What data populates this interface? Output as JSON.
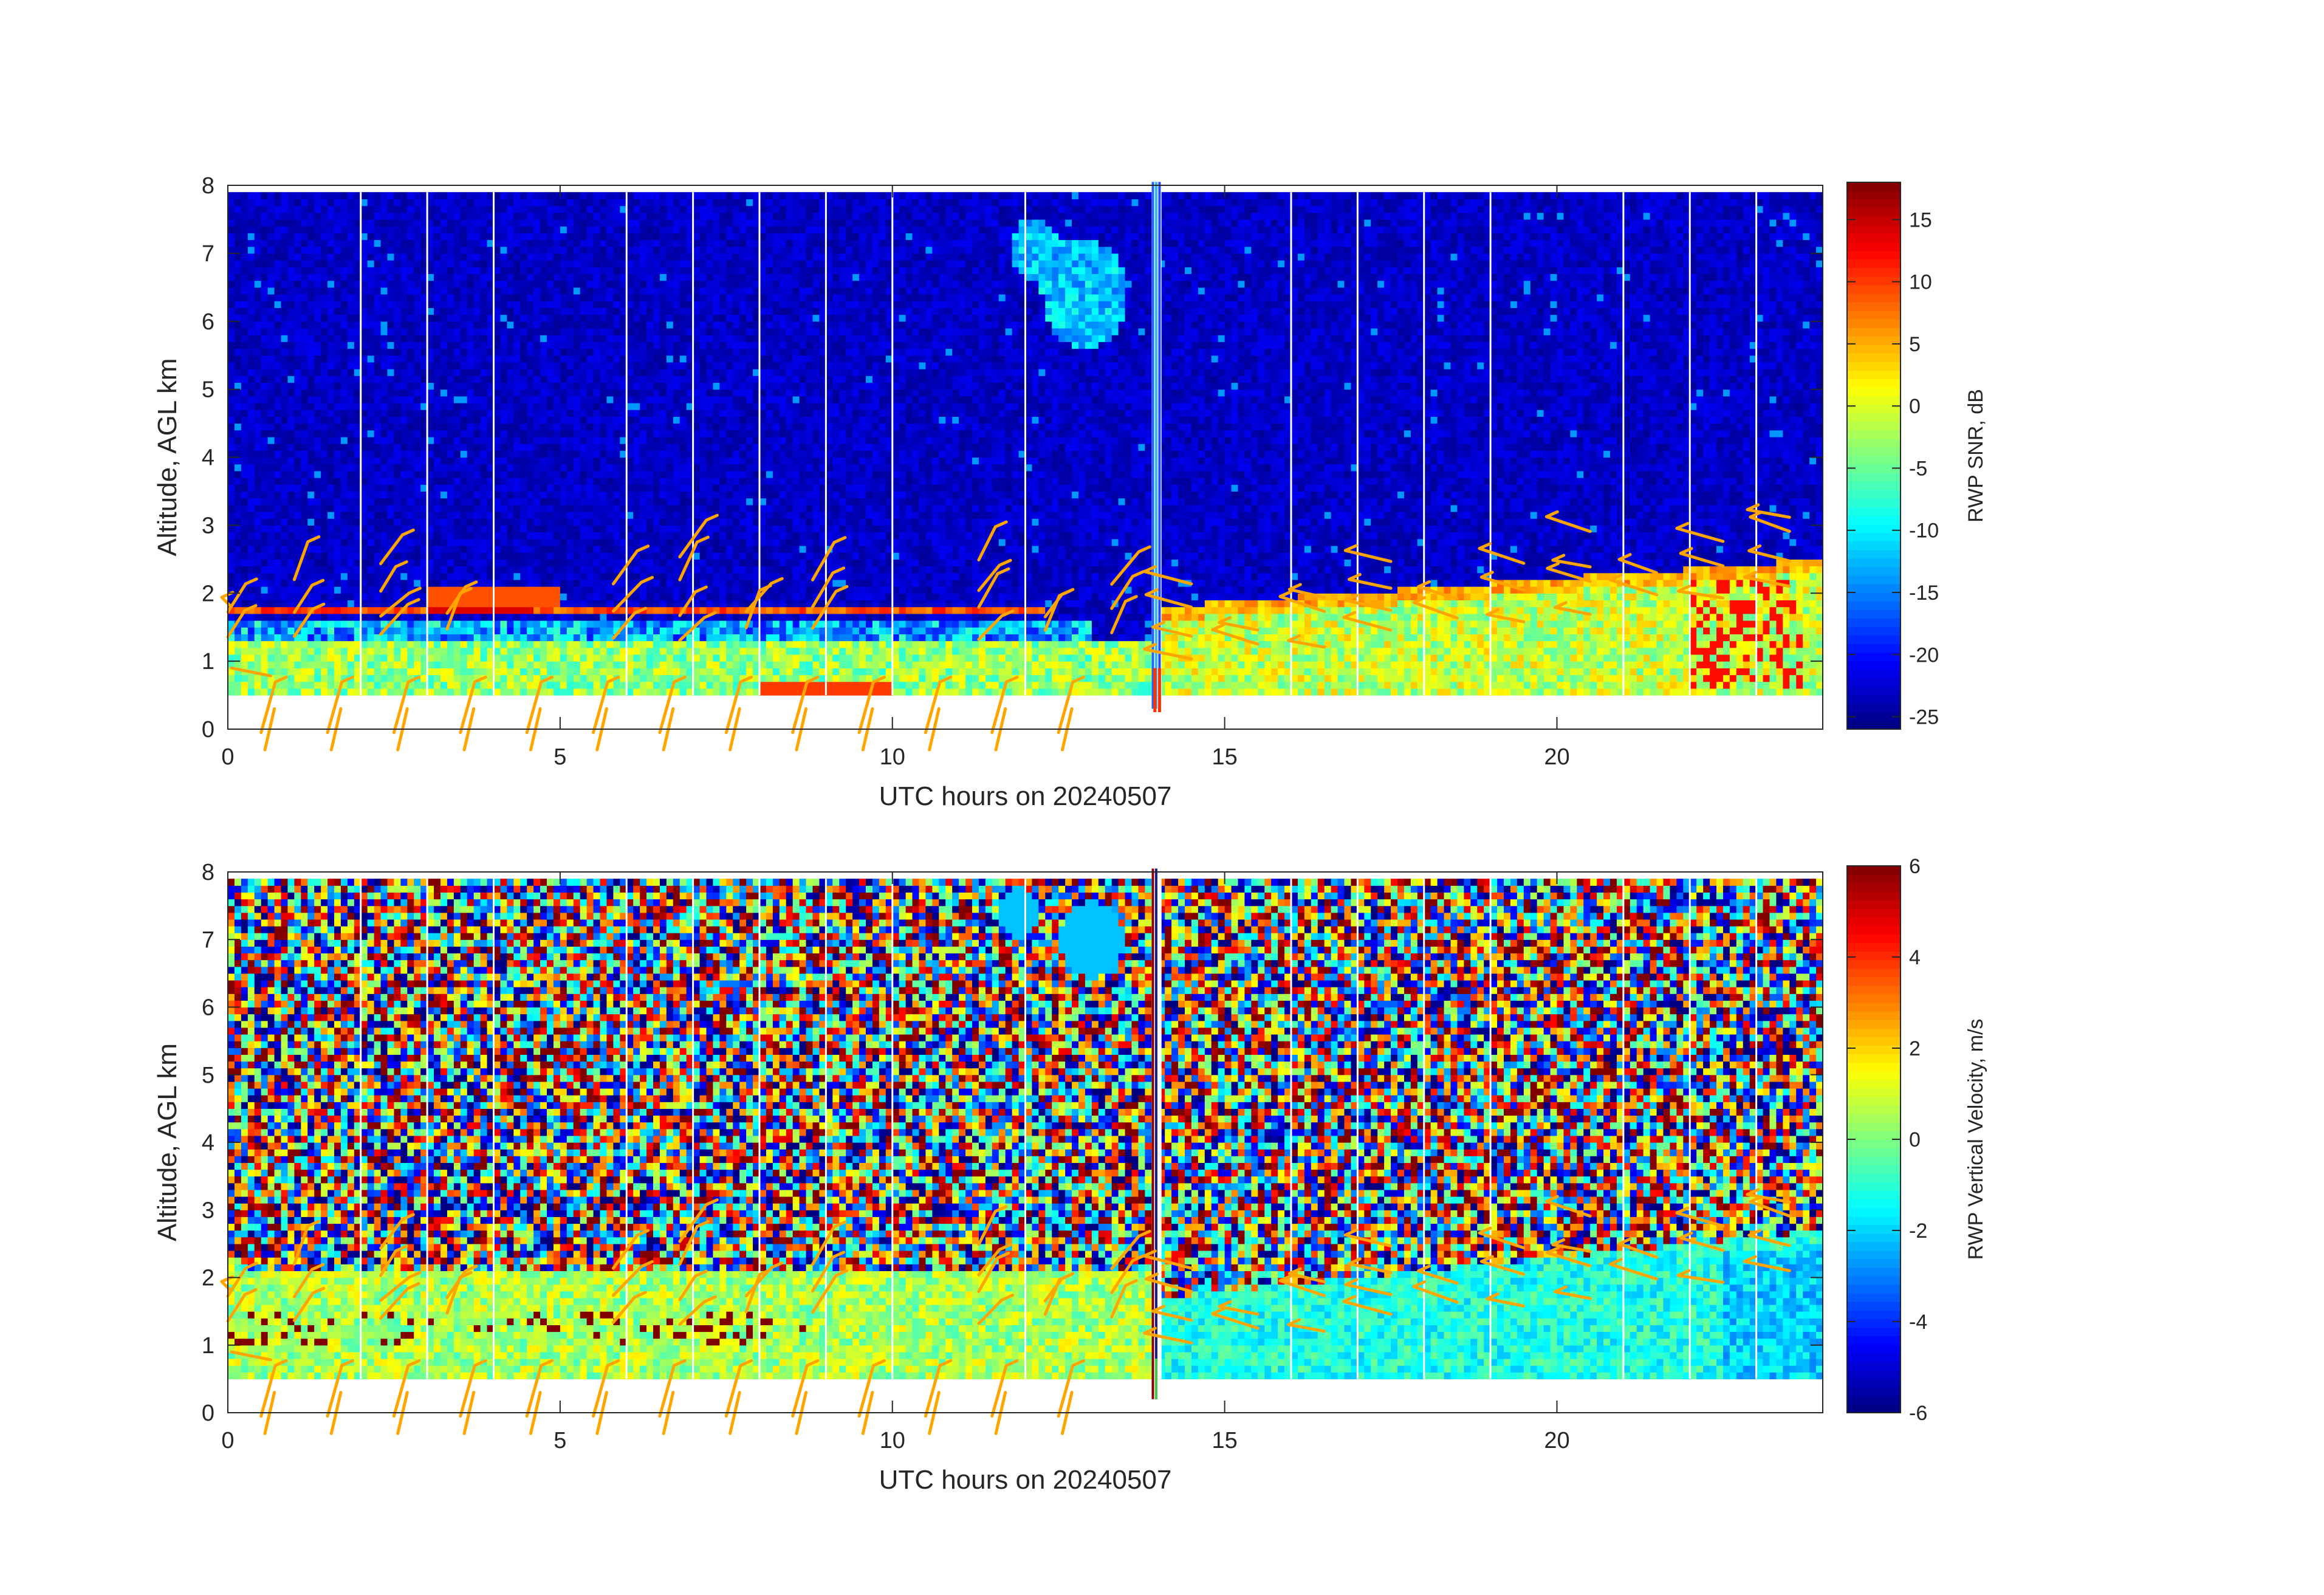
{
  "chart_data": [
    {
      "type": "heatmap",
      "xlabel": "UTC hours on 20240507",
      "ylabel": "Altitude, AGL km",
      "xlim": [
        0,
        24
      ],
      "ylim": [
        0,
        8
      ],
      "xticks": [
        0,
        5,
        10,
        15,
        20
      ],
      "yticks": [
        0,
        1,
        2,
        3,
        4,
        5,
        6,
        7,
        8
      ],
      "data_altitude_range_km": [
        0.5,
        7.9
      ],
      "colorbar": {
        "label": "RWP SNR, dB",
        "range": [
          -26,
          18
        ],
        "ticks": [
          15,
          10,
          5,
          0,
          -5,
          -10,
          -15,
          -20,
          -25
        ],
        "colormap": "jet"
      },
      "gap_times_hours": [
        2.0,
        3.0,
        4.0,
        6.0,
        7.0,
        8.0,
        9.0,
        10.0,
        12.0,
        16.0,
        17.0,
        18.0,
        19.0,
        21.0,
        22.0,
        23.0
      ],
      "layers": [
        {
          "feature": "boundary layer top",
          "altitude_km": 1.75,
          "time_range_hours": [
            0,
            12.5
          ],
          "snr_db": 10
        },
        {
          "feature": "near-surface signal",
          "altitude_km": [
            0.5,
            1.3
          ],
          "time_range_hours": [
            0,
            24
          ],
          "snr_db": -2
        },
        {
          "feature": "rising convective layer",
          "altitude_km": [
            0.6,
            2.4
          ],
          "time_range_hours": [
            14,
            24
          ],
          "snr_db": 0
        },
        {
          "feature": "upper cloud / precipitation",
          "altitude_km": [
            5.5,
            7.6
          ],
          "time_range_hours": [
            11.8,
            13.8
          ],
          "snr_db": -12
        }
      ],
      "wind_barbs": {
        "color": "#FFA500",
        "surface_times_hours": [
          0.5,
          1.5,
          2.5,
          3.5,
          4.5,
          5.5,
          6.5,
          7.5,
          8.5,
          9.5,
          10.5,
          11.5,
          12.5
        ],
        "profile_times_hours": [
          0,
          1,
          2.3,
          3.3,
          5.8,
          6.8,
          7.8,
          8.8,
          11.3,
          12.3,
          13.3,
          14.5,
          15.5,
          16.5,
          17.5,
          18.5,
          19.5,
          20.5,
          21.5,
          22.5,
          23.5
        ]
      }
    },
    {
      "type": "heatmap",
      "xlabel": "UTC hours on 20240507",
      "ylabel": "Altitude, AGL km",
      "xlim": [
        0,
        24
      ],
      "ylim": [
        0,
        8
      ],
      "xticks": [
        0,
        5,
        10,
        15,
        20
      ],
      "yticks": [
        0,
        1,
        2,
        3,
        4,
        5,
        6,
        7,
        8
      ],
      "data_altitude_range_km": [
        0.5,
        7.9
      ],
      "colorbar": {
        "label": "RWP Vertical Velocity, m/s",
        "range": [
          -6,
          6
        ],
        "ticks": [
          6,
          4,
          2,
          0,
          -2,
          -4,
          -6
        ],
        "colormap": "jet"
      },
      "gap_times_hours": [
        2.0,
        3.0,
        4.0,
        6.0,
        7.0,
        8.0,
        9.0,
        10.0,
        12.0,
        16.0,
        17.0,
        18.0,
        19.0,
        21.0,
        22.0,
        23.0
      ],
      "layers": [
        {
          "feature": "noise above boundary layer",
          "altitude_km": [
            2.0,
            7.9
          ],
          "velocity_m_s": "random -6 to 6"
        },
        {
          "feature": "boundary layer",
          "altitude_km": [
            0.5,
            2.1
          ],
          "time_range_hours": [
            0,
            14
          ],
          "velocity_m_s": 0.5
        },
        {
          "feature": "convective layer",
          "altitude_km": [
            0.5,
            2.8
          ],
          "time_range_hours": [
            14,
            24
          ],
          "velocity_m_s": -1
        }
      ],
      "wind_barbs": {
        "color": "#FFA500",
        "surface_times_hours": [
          0.5,
          1.5,
          2.5,
          3.5,
          4.5,
          5.5,
          6.5,
          7.5,
          8.5,
          9.5,
          10.5,
          11.5,
          12.5
        ],
        "profile_times_hours": [
          0,
          1,
          2.3,
          3.3,
          5.8,
          6.8,
          7.8,
          8.8,
          11.3,
          12.3,
          13.3,
          14.5,
          15.5,
          16.5,
          17.5,
          18.5,
          19.5,
          20.5,
          21.5,
          22.5,
          23.5
        ]
      }
    }
  ]
}
